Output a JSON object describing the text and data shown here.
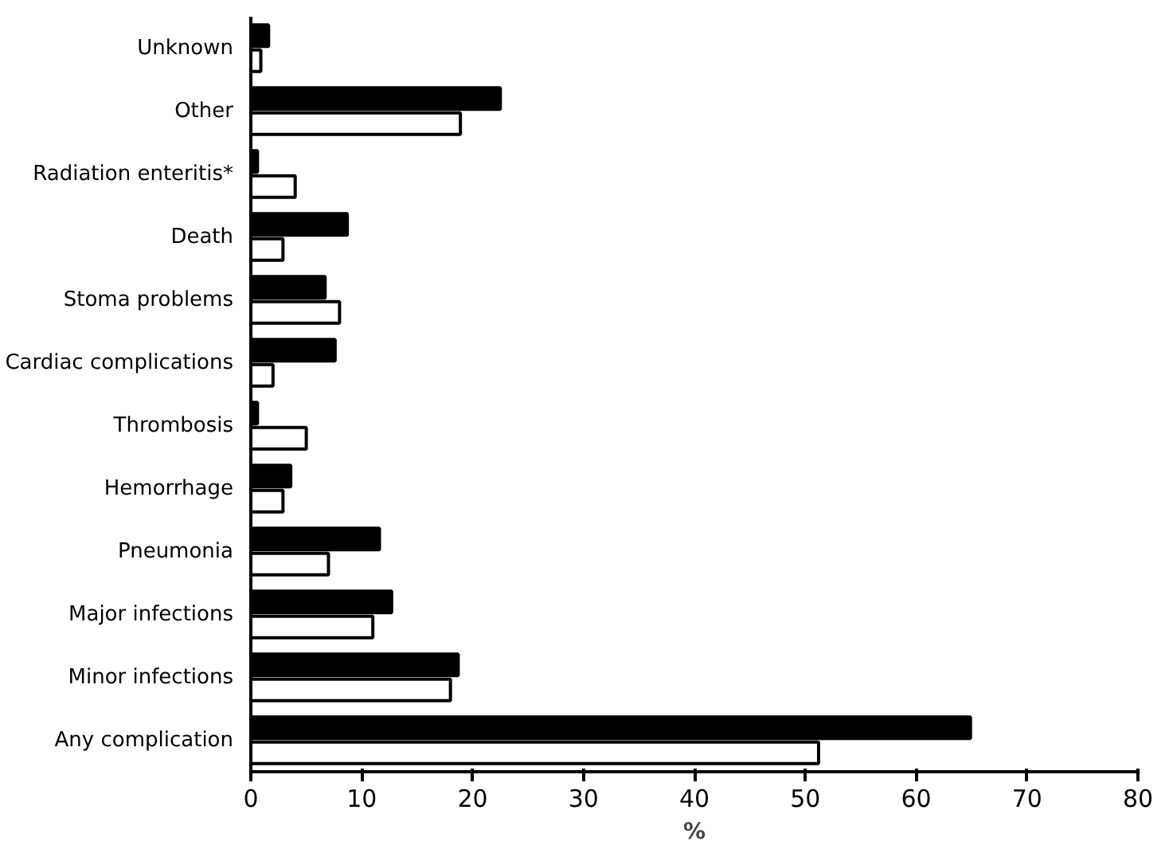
{
  "chart_data": {
    "type": "bar",
    "orientation": "horizontal",
    "xlabel": "%",
    "categories": [
      "Unknown",
      "Other",
      "Radiation enteritis*",
      "Death",
      "Stoma problems",
      "Cardiac complications",
      "Thrombosis",
      "Hemorrhage",
      "Pneumonia",
      "Major infections",
      "Minor infections",
      "Any complication"
    ],
    "series": [
      {
        "color": "#000000",
        "values": [
          1.6,
          22.5,
          0.6,
          8.7,
          6.7,
          7.6,
          0.6,
          3.6,
          11.6,
          12.7,
          18.7,
          64.9
        ]
      },
      {
        "color": "#ffffff",
        "values": [
          0.9,
          18.9,
          4.0,
          2.9,
          8.0,
          2.0,
          5.0,
          2.9,
          7.0,
          11.0,
          18.0,
          51.2
        ]
      }
    ],
    "xlim": [
      0,
      80
    ],
    "xticks": [
      0,
      10,
      20,
      30,
      40,
      50,
      60,
      70,
      80
    ],
    "grid": false
  }
}
